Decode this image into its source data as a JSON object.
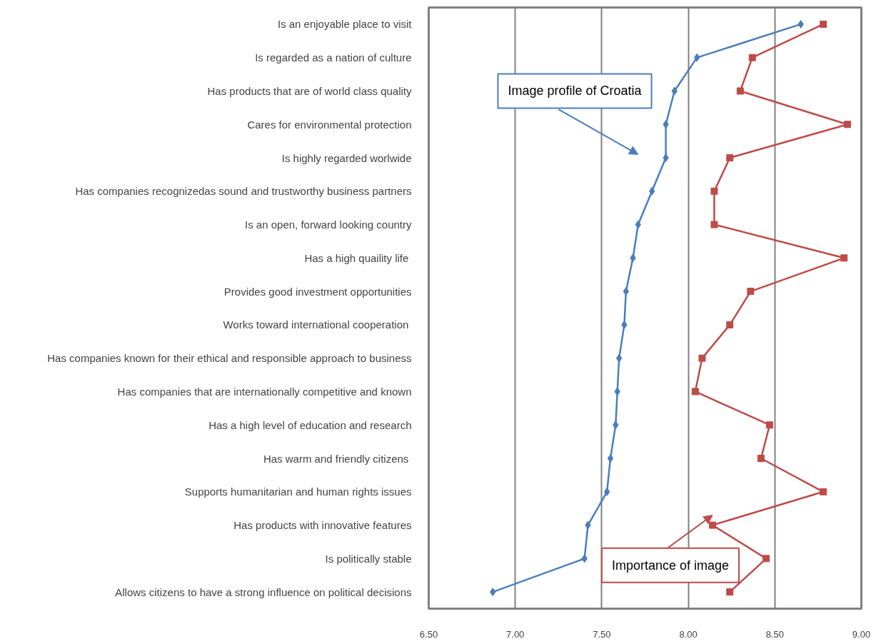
{
  "chart_data": {
    "type": "line",
    "orientation": "horizontal",
    "categories": [
      "Is an enjoyable place to visit",
      "Is regarded as a nation of culture",
      "Has products that are of world class quality",
      "Cares for environmental protection",
      "Is highly regarded worlwide",
      "Has companies recognizedas sound and trustworthy business partners",
      "Is an open, forward looking country",
      "Has  a high quaility life",
      "Provides good investment opportunities",
      "Works toward international  cooperation",
      "Has companies known for their ethical and responsible approach to business",
      "Has companies that are internationally competitive and known",
      "Has a high level of education and research",
      "Has warm  and friendly citizens",
      "Supports humanitarian and human rights issues",
      "Has products with innovative features",
      "Is politically stable",
      "Allows citizens to have a strong influence on political decisions"
    ],
    "series": [
      {
        "name": "Image profile of Croatia",
        "color": "#4a7ebb",
        "marker": "diamond",
        "values": [
          8.65,
          8.05,
          7.92,
          7.87,
          7.87,
          7.79,
          7.71,
          7.68,
          7.64,
          7.63,
          7.6,
          7.59,
          7.58,
          7.55,
          7.53,
          7.42,
          7.4,
          6.87
        ]
      },
      {
        "name": "Importance of image",
        "color": "#be4b48",
        "marker": "square",
        "values": [
          8.78,
          8.37,
          8.3,
          8.92,
          8.24,
          8.15,
          8.15,
          8.9,
          8.36,
          8.24,
          8.08,
          8.04,
          8.47,
          8.42,
          8.78,
          8.14,
          8.45,
          8.24
        ]
      }
    ],
    "xlim": [
      6.5,
      9.0
    ],
    "xticks": [
      {
        "value": 6.5,
        "label": "6.50"
      },
      {
        "value": 7.0,
        "label": "7.00"
      },
      {
        "value": 7.5,
        "label": "7.50"
      },
      {
        "value": 8.0,
        "label": "8.00"
      },
      {
        "value": 8.5,
        "label": "8.50"
      },
      {
        "value": 9.0,
        "label": "9.00"
      }
    ],
    "grid": "x",
    "legend": false,
    "line_style": "solid"
  }
}
